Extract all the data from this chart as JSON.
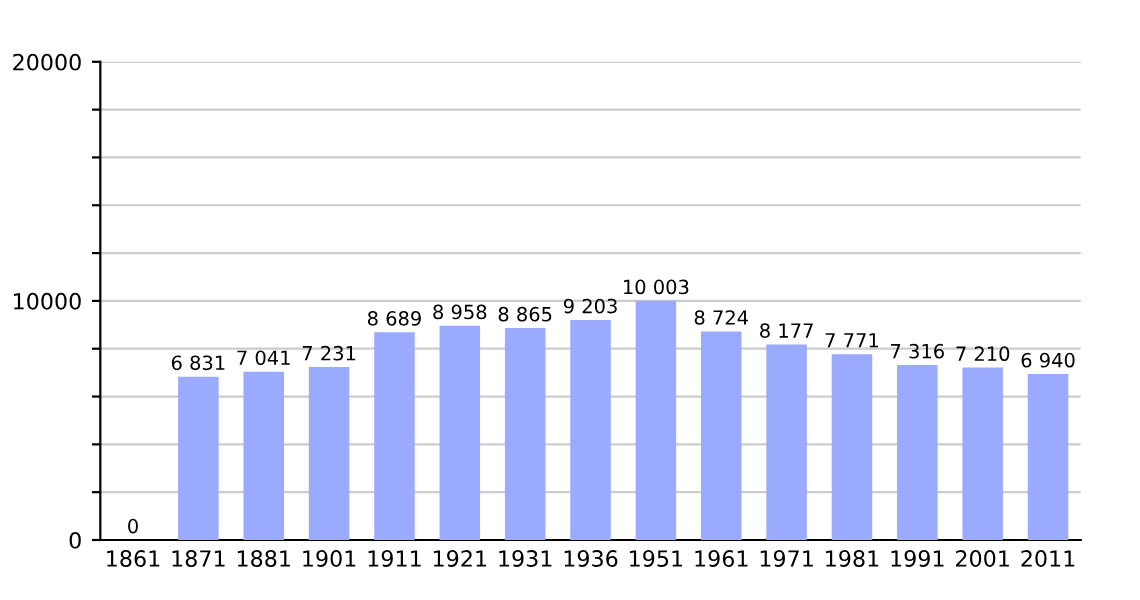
{
  "chart_data": {
    "type": "bar",
    "categories": [
      "1861",
      "1871",
      "1881",
      "1901",
      "1911",
      "1921",
      "1931",
      "1936",
      "1951",
      "1961",
      "1971",
      "1981",
      "1991",
      "2001",
      "2011"
    ],
    "values": [
      0,
      6831,
      7041,
      7231,
      8689,
      8958,
      8865,
      9203,
      10003,
      8724,
      8177,
      7771,
      7316,
      7210,
      6940
    ],
    "value_labels": [
      "0",
      "6 831",
      "7 041",
      "7 231",
      "8 689",
      "8 958",
      "8 865",
      "9 203",
      "10 003",
      "8 724",
      "8 177",
      "7 771",
      "7 316",
      "7 210",
      "6 940"
    ],
    "color": "#99aaff",
    "ylim": [
      0,
      20000
    ],
    "yticks": [
      0,
      {
        "value": 2000,
        "label": null
      },
      {
        "value": 4000,
        "label": null
      },
      {
        "value": 6000,
        "label": null
      },
      {
        "value": 8000,
        "label": null
      },
      10000,
      {
        "value": 12000,
        "label": null
      },
      {
        "value": 14000,
        "label": null
      },
      {
        "value": 16000,
        "label": null
      },
      {
        "value": 18000,
        "label": null
      },
      20000
    ],
    "grid": "y"
  }
}
